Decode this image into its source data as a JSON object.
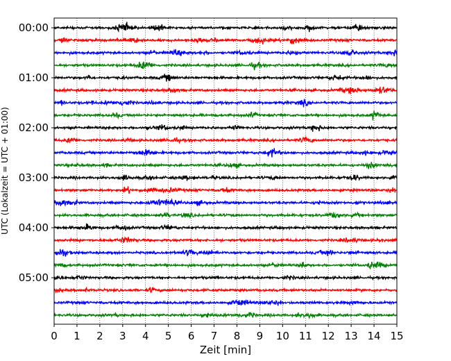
{
  "chart_data": {
    "type": "line",
    "title": "",
    "xlabel": "Zeit  [min]",
    "ylabel": "UTC (Lokalzeit = UTC + 01:00)",
    "xlim": [
      0,
      15
    ],
    "xticks": [
      0,
      1,
      2,
      3,
      4,
      5,
      6,
      7,
      8,
      9,
      10,
      11,
      12,
      13,
      14,
      15
    ],
    "ytick_labels": [
      "00:00",
      "01:00",
      "02:00",
      "03:00",
      "04:00",
      "05:00"
    ],
    "trace_interval_minutes": 15,
    "trace_count": 24,
    "trace_colors": [
      "#000000",
      "#ff0000",
      "#0000ff",
      "#008000"
    ],
    "grid": "vertical dotted at each minute",
    "legend": "none"
  }
}
